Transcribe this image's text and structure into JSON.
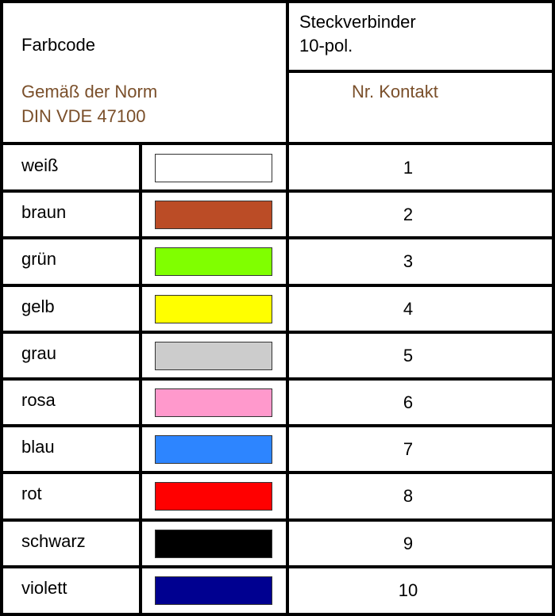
{
  "header": {
    "farbcode": "Farbcode",
    "norm_line1": "Gemäß der Norm",
    "norm_line2": "DIN VDE 47100",
    "connector_line1": "Steckverbinder",
    "connector_line2": "10-pol.",
    "contact_no": "Nr. Kontakt"
  },
  "accent_color": "#7a4f2a",
  "rows": [
    {
      "name": "weiß",
      "color": "#ffffff",
      "contact": "1"
    },
    {
      "name": "braun",
      "color": "#bb4c26",
      "contact": "2"
    },
    {
      "name": "grün",
      "color": "#80ff00",
      "contact": "3"
    },
    {
      "name": "gelb",
      "color": "#ffff00",
      "contact": "4"
    },
    {
      "name": "grau",
      "color": "#cccccc",
      "contact": "5"
    },
    {
      "name": "rosa",
      "color": "#ff99cc",
      "contact": "6"
    },
    {
      "name": "blau",
      "color": "#2d85ff",
      "contact": "7"
    },
    {
      "name": "rot",
      "color": "#ff0000",
      "contact": "8"
    },
    {
      "name": "schwarz",
      "color": "#000000",
      "contact": "9"
    },
    {
      "name": "violett",
      "color": "#000090",
      "contact": "10"
    }
  ]
}
